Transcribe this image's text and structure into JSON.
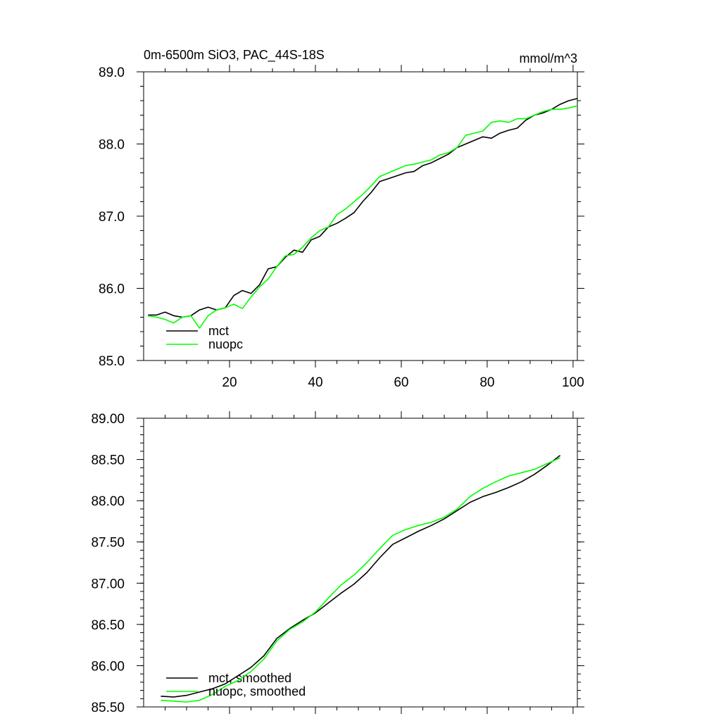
{
  "chart_data": [
    {
      "type": "line",
      "title": "0m-6500m SiO3, PAC_44S-18S",
      "units": "mmol/m^3",
      "xlabel": "",
      "ylabel": "",
      "xlim": [
        0,
        101
      ],
      "ylim": [
        85.0,
        89.0
      ],
      "x_ticks": [
        20,
        40,
        60,
        80,
        100
      ],
      "x_tick_labels": [
        "20",
        "40",
        "60",
        "80",
        "100"
      ],
      "y_ticks": [
        85.0,
        86.0,
        87.0,
        88.0,
        89.0
      ],
      "y_tick_labels": [
        "85.0",
        "86.0",
        "87.0",
        "88.0",
        "89.0"
      ],
      "legend_position": "bottom-left",
      "series": [
        {
          "name": "mct",
          "color": "#000000",
          "x": [
            1,
            3,
            5,
            7,
            9,
            11,
            13,
            15,
            17,
            19,
            21,
            23,
            25,
            27,
            29,
            31,
            33,
            35,
            37,
            39,
            41,
            43,
            45,
            47,
            49,
            51,
            53,
            55,
            57,
            59,
            61,
            63,
            65,
            67,
            69,
            71,
            73,
            75,
            77,
            79,
            81,
            83,
            85,
            87,
            89,
            91,
            93,
            95,
            97,
            99,
            101
          ],
          "values": [
            85.63,
            85.63,
            85.67,
            85.62,
            85.6,
            85.62,
            85.7,
            85.74,
            85.7,
            85.73,
            85.9,
            85.97,
            85.93,
            86.05,
            86.27,
            86.3,
            86.43,
            86.53,
            86.5,
            86.67,
            86.72,
            86.85,
            86.9,
            86.97,
            87.05,
            87.2,
            87.33,
            87.48,
            87.52,
            87.56,
            87.6,
            87.62,
            87.7,
            87.74,
            87.8,
            87.86,
            87.95,
            88.0,
            88.05,
            88.1,
            88.08,
            88.15,
            88.19,
            88.22,
            88.33,
            88.4,
            88.43,
            88.48,
            88.55,
            88.6,
            88.63
          ]
        },
        {
          "name": "nuopc",
          "color": "#00ff00",
          "x": [
            1,
            3,
            5,
            7,
            9,
            11,
            13,
            15,
            17,
            19,
            21,
            23,
            25,
            27,
            29,
            31,
            33,
            35,
            37,
            39,
            41,
            43,
            45,
            47,
            49,
            51,
            53,
            55,
            57,
            59,
            61,
            63,
            65,
            67,
            69,
            71,
            73,
            75,
            77,
            79,
            81,
            83,
            85,
            87,
            89,
            91,
            93,
            95,
            97,
            99,
            101
          ],
          "values": [
            85.62,
            85.6,
            85.57,
            85.52,
            85.6,
            85.62,
            85.45,
            85.62,
            85.7,
            85.73,
            85.78,
            85.72,
            85.88,
            86.02,
            86.13,
            86.3,
            86.45,
            86.47,
            86.57,
            86.7,
            86.8,
            86.85,
            87.02,
            87.1,
            87.2,
            87.3,
            87.42,
            87.55,
            87.6,
            87.65,
            87.7,
            87.72,
            87.75,
            87.78,
            87.85,
            87.88,
            87.95,
            88.12,
            88.15,
            88.18,
            88.3,
            88.32,
            88.3,
            88.35,
            88.35,
            88.4,
            88.45,
            88.48,
            88.48,
            88.5,
            88.53
          ]
        }
      ]
    },
    {
      "type": "line",
      "title": "",
      "xlabel": "",
      "ylabel": "",
      "xlim": [
        0,
        101
      ],
      "ylim": [
        85.5,
        89.0
      ],
      "x_ticks": [
        20,
        40,
        60,
        80,
        100
      ],
      "y_ticks": [
        85.5,
        86.0,
        86.5,
        87.0,
        87.5,
        88.0,
        88.5,
        89.0
      ],
      "y_tick_labels": [
        "85.50",
        "86.00",
        "86.50",
        "87.00",
        "87.50",
        "88.00",
        "88.50",
        "89.00"
      ],
      "legend_position": "bottom-left",
      "series": [
        {
          "name": "mct, smoothed",
          "color": "#000000",
          "x": [
            4,
            7,
            10,
            13,
            16,
            19,
            22,
            25,
            28,
            31,
            34,
            37,
            40,
            43,
            46,
            49,
            52,
            55,
            58,
            61,
            64,
            67,
            70,
            73,
            76,
            79,
            82,
            85,
            88,
            91,
            94,
            97
          ],
          "values": [
            85.63,
            85.62,
            85.64,
            85.68,
            85.72,
            85.78,
            85.88,
            85.98,
            86.12,
            86.33,
            86.45,
            86.55,
            86.64,
            86.76,
            86.88,
            86.99,
            87.13,
            87.31,
            87.47,
            87.55,
            87.63,
            87.7,
            87.78,
            87.88,
            87.98,
            88.05,
            88.1,
            88.16,
            88.23,
            88.32,
            88.43,
            88.55
          ]
        },
        {
          "name": "nuopc, smoothed",
          "color": "#00ff00",
          "x": [
            4,
            7,
            10,
            13,
            16,
            19,
            22,
            25,
            28,
            31,
            34,
            37,
            40,
            43,
            46,
            49,
            52,
            55,
            58,
            61,
            64,
            67,
            70,
            73,
            76,
            79,
            82,
            85,
            88,
            91,
            94,
            97
          ],
          "values": [
            85.58,
            85.57,
            85.56,
            85.58,
            85.65,
            85.75,
            85.82,
            85.93,
            86.08,
            86.3,
            86.44,
            86.53,
            86.65,
            86.82,
            86.98,
            87.1,
            87.25,
            87.42,
            87.58,
            87.65,
            87.7,
            87.74,
            87.8,
            87.9,
            88.05,
            88.15,
            88.23,
            88.3,
            88.34,
            88.38,
            88.45,
            88.52
          ]
        }
      ]
    }
  ]
}
